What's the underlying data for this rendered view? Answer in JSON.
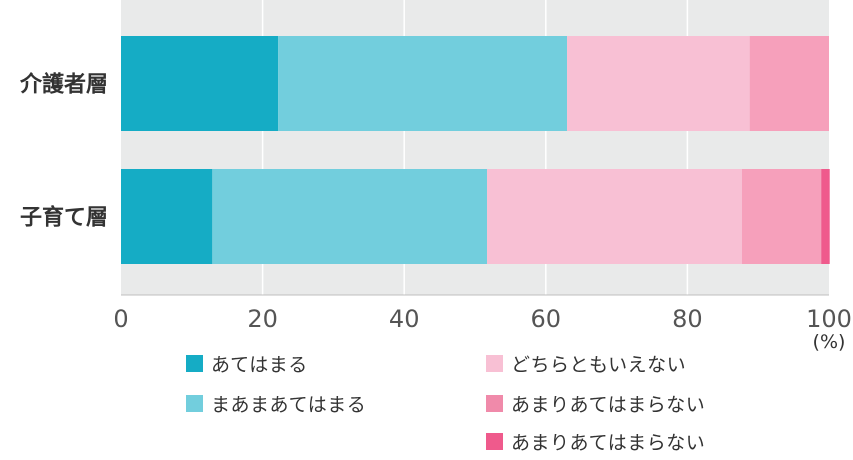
{
  "chart_data": {
    "type": "bar",
    "orientation": "horizontal",
    "stacked": true,
    "categories": [
      "介護者層",
      "子育て層"
    ],
    "series": [
      {
        "name": "あてはまる",
        "color": "#15acc5",
        "values": [
          22.2,
          12.9
        ]
      },
      {
        "name": "まあまあてはまる",
        "color": "#72cedd",
        "values": [
          40.8,
          38.8
        ]
      },
      {
        "name": "どちらともいえない",
        "color": "#f8c0d4",
        "values": [
          25.8,
          36.0
        ]
      },
      {
        "name": "あまりあてはまらない",
        "color": "#f6a0bb",
        "values": [
          11.2,
          11.2
        ]
      },
      {
        "name": "あまりあてはまらない",
        "color": "#ef5a8c",
        "values": [
          0.0,
          1.2
        ]
      }
    ],
    "xlim": [
      0,
      100
    ],
    "xticks": [
      "0",
      "20",
      "40",
      "60",
      "80",
      "100"
    ],
    "unit": "(%)",
    "grid": true,
    "legend": "bottom"
  }
}
